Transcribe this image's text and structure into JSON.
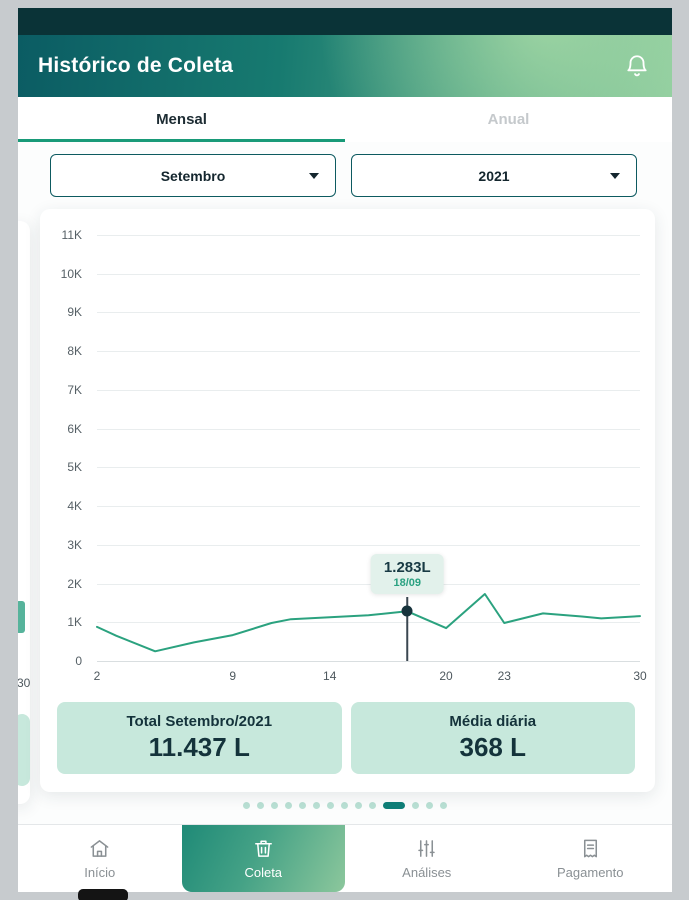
{
  "app": {
    "title": "Histórico de Coleta",
    "tabs": [
      {
        "label": "Mensal",
        "active": true
      },
      {
        "label": "Anual",
        "active": false
      }
    ],
    "filters": {
      "month": "Setembro",
      "year": "2021"
    },
    "summary": [
      {
        "title": "Total Setembro/2021",
        "value": "11.437 L"
      },
      {
        "title": "Média diária",
        "value": "368 L"
      }
    ],
    "bottom_nav": [
      {
        "label": "Início",
        "icon": "home-icon",
        "active": false
      },
      {
        "label": "Coleta",
        "icon": "trash-icon",
        "active": true
      },
      {
        "label": "Análises",
        "icon": "analytics-icon",
        "active": false
      },
      {
        "label": "Pagamento",
        "icon": "payment-icon",
        "active": false
      }
    ],
    "carousel": {
      "dots_count": 14,
      "active_index": 10
    },
    "left_peek": {
      "x_label": "30"
    },
    "icons": {
      "notification": "bell-icon",
      "dropdown": "chevron-down-icon"
    }
  },
  "chart_data": {
    "type": "line",
    "title": "",
    "xlabel": "",
    "ylabel": "",
    "x": [
      2,
      3,
      5,
      7,
      9,
      11,
      12,
      14,
      16,
      18,
      20,
      22,
      23,
      25,
      27,
      28,
      30
    ],
    "values": [
      880,
      650,
      250,
      480,
      670,
      980,
      1080,
      1130,
      1180,
      1283,
      850,
      1730,
      980,
      1230,
      1150,
      1100,
      1160
    ],
    "selected": {
      "x": 18,
      "value": 1283,
      "label": "1.283L",
      "date": "18/09"
    },
    "ylabels": [
      "11K",
      "10K",
      "9K",
      "8K",
      "7K",
      "6K",
      "5K",
      "4K",
      "3K",
      "2K",
      "1K",
      "0"
    ],
    "ylim": [
      0,
      11000
    ],
    "xlim": [
      2,
      30
    ],
    "xticks": [
      2,
      9,
      14,
      20,
      23,
      30
    ],
    "line_color": "#2ba27f",
    "grid": true,
    "legend": false
  },
  "colors": {
    "status_bar": "#0a3337",
    "header_gradient_start": "#0b5c63",
    "header_gradient_end": "#8ccb9e",
    "accent_teal": "#189a78",
    "line_color": "#2ba27f",
    "mint_card": "#c7e8dc",
    "tooltip_bg": "#e2f1eb",
    "dark_text": "#14333b",
    "inactive_gray": "#8a9094"
  }
}
